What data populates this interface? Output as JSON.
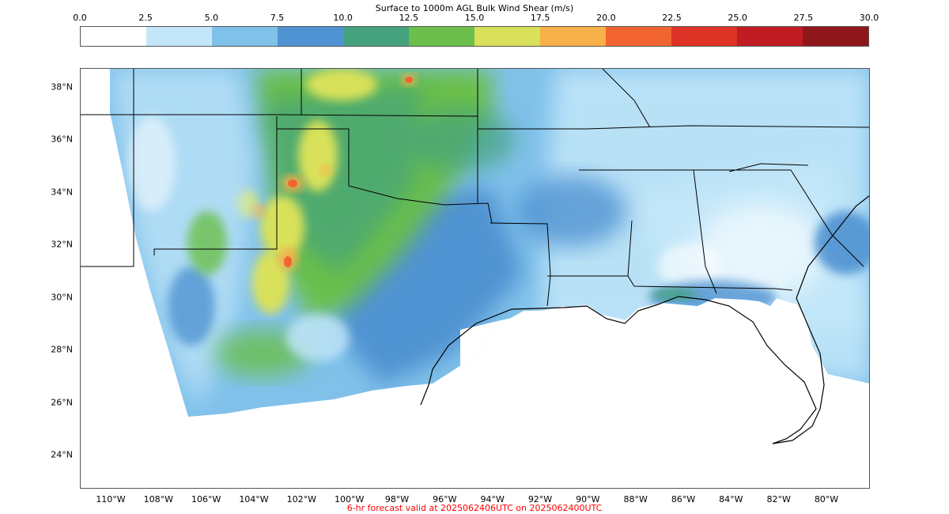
{
  "title": "Surface to 1000m AGL Bulk Wind Shear (m/s)",
  "footer": {
    "text": "6-hr forecast valid at 2025062406UTC on 2025062400UTC",
    "color": "#ff0000"
  },
  "colorbar": {
    "ticks": [
      "0.0",
      "2.5",
      "5.0",
      "7.5",
      "10.0",
      "12.5",
      "15.0",
      "17.5",
      "20.0",
      "22.5",
      "25.0",
      "27.5",
      "30.0"
    ],
    "colors": [
      "#ffffff",
      "#c3e7f9",
      "#80c1ea",
      "#4f93d2",
      "#45a27f",
      "#6bbf4a",
      "#d9e15a",
      "#f8b04a",
      "#f26530",
      "#dd3327",
      "#bf1c24",
      "#8f171c"
    ]
  },
  "map": {
    "lat_labels": [
      "38°N",
      "36°N",
      "34°N",
      "32°N",
      "30°N",
      "28°N",
      "26°N",
      "24°N"
    ],
    "lon_labels": [
      "110°W",
      "108°W",
      "106°W",
      "104°W",
      "102°W",
      "100°W",
      "98°W",
      "96°W",
      "94°W",
      "92°W",
      "90°W",
      "88°W",
      "86°W",
      "84°W",
      "82°W",
      "80°W"
    ],
    "region": "southern United States",
    "features": [
      "wind-shear-shading",
      "state-borders",
      "coastline"
    ]
  }
}
